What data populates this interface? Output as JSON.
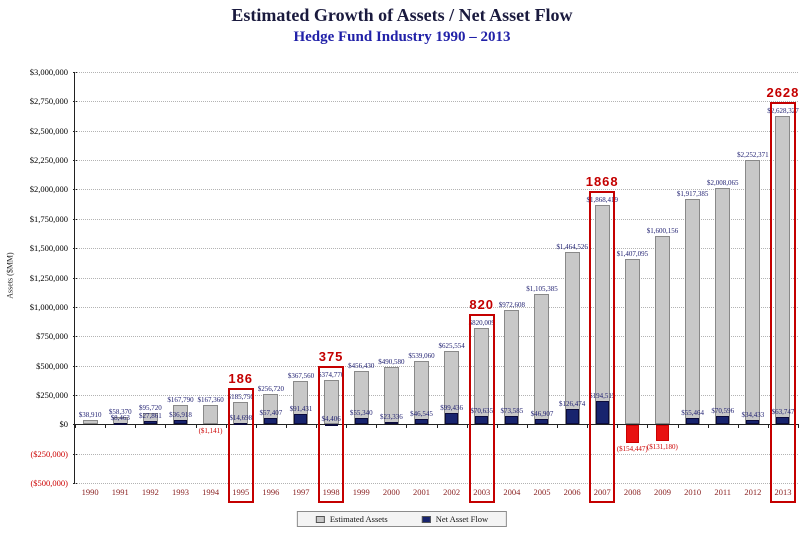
{
  "title": "Estimated Growth of Assets / Net Asset Flow",
  "subtitle": "Hedge Fund Industry 1990 – 2013",
  "y_axis": {
    "label": "Assets ($MM)",
    "ticks": [
      {
        "label": "$3,000,000",
        "negative": false
      },
      {
        "label": "$2,750,000",
        "negative": false
      },
      {
        "label": "$2,500,000",
        "negative": false
      },
      {
        "label": "$2,250,000",
        "negative": false
      },
      {
        "label": "$2,000,000",
        "negative": false
      },
      {
        "label": "$1,750,000",
        "negative": false
      },
      {
        "label": "$1,500,000",
        "negative": false
      },
      {
        "label": "$1,250,000",
        "negative": false
      },
      {
        "label": "$1,000,000",
        "negative": false
      },
      {
        "label": "$750,000",
        "negative": false
      },
      {
        "label": "$500,000",
        "negative": false
      },
      {
        "label": "$250,000",
        "negative": false
      },
      {
        "label": "$0",
        "negative": false
      },
      {
        "label": "($250,000)",
        "negative": true
      },
      {
        "label": "($500,000)",
        "negative": true
      }
    ]
  },
  "legend": [
    {
      "label": "Estimated Assets",
      "color": "#c8c8c8"
    },
    {
      "label": "Net Asset Flow",
      "color": "#18246e"
    }
  ],
  "colors": {
    "estimated_assets_bar": "#c8c8c8",
    "net_asset_flow_bar": "#18246e",
    "negative_flow_bar": "#e81111",
    "value_label": "#1b1b6e",
    "negative_label": "#cc0000",
    "highlight_red": "#c40000",
    "year_label": "#8b2323",
    "title": "#1a1a3e",
    "subtitle": "#2121a8"
  },
  "chart_data": {
    "type": "bar",
    "title": "Estimated Growth of Assets / Net Asset Flow",
    "subtitle": "Hedge Fund Industry 1990 – 2013",
    "xlabel": "",
    "ylabel": "Assets ($MM)",
    "ylim": [
      -500000,
      3000000
    ],
    "grid": true,
    "legend_position": "bottom",
    "categories": [
      "1990",
      "1991",
      "1992",
      "1993",
      "1994",
      "1995",
      "1996",
      "1997",
      "1998",
      "1999",
      "2000",
      "2001",
      "2002",
      "2003",
      "2004",
      "2005",
      "2006",
      "2007",
      "2008",
      "2009",
      "2010",
      "2011",
      "2012",
      "2013"
    ],
    "series": [
      {
        "name": "Estimated Assets",
        "values": [
          38910,
          58370,
          95720,
          167790,
          167360,
          185750,
          256720,
          367560,
          374770,
          456430,
          490580,
          539060,
          625554,
          820009,
          972608,
          1105385,
          1464526,
          1868419,
          1407095,
          1600156,
          1917385,
          2008065,
          2252371,
          2628327
        ],
        "labels": [
          "$38,910",
          "$58,370",
          "$95,720",
          "$167,790",
          "$167,360",
          "$185,750",
          "$256,720",
          "$367,560",
          "$374,770",
          "$456,430",
          "$490,580",
          "$539,060",
          "$625,554",
          "$820,009",
          "$972,608",
          "$1,105,385",
          "$1,464,526",
          "$1,868,419",
          "$1,407,095",
          "$1,600,156",
          "$1,917,385",
          "$2,008,065",
          "$2,252,371",
          "$2,628,327"
        ]
      },
      {
        "name": "Net Asset Flow",
        "values": [
          null,
          8463,
          27861,
          36918,
          -1141,
          14698,
          57407,
          91431,
          4406,
          55340,
          23336,
          46545,
          99436,
          70635,
          73585,
          46907,
          126474,
          194515,
          -154447,
          -131180,
          55464,
          70596,
          34433,
          63747
        ],
        "labels": [
          null,
          "$8,463",
          "$27,861",
          "$36,918",
          "($1,141)",
          "$14,698",
          "$57,407",
          "$91,431",
          "$4,406",
          "$55,340",
          "$23,336",
          "$46,545",
          "$99,436",
          "$70,635",
          "$73,585",
          "$46,907",
          "$126,474",
          "$194,515",
          "($154,447)",
          "($131,180)",
          "$55,464",
          "$70,596",
          "$34,433",
          "$63,747"
        ]
      }
    ],
    "annotations": [
      {
        "year": "1995",
        "text": "186"
      },
      {
        "year": "1998",
        "text": "375"
      },
      {
        "year": "2003",
        "text": "820"
      },
      {
        "year": "2007",
        "text": "1868"
      },
      {
        "year": "2013",
        "text": "2628"
      }
    ]
  }
}
